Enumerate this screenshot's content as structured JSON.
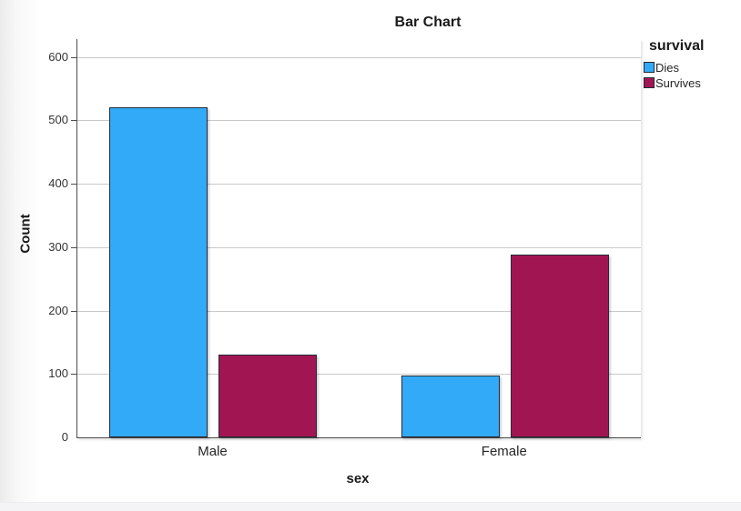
{
  "chart_data": {
    "type": "bar",
    "title": "Bar Chart",
    "xlabel": "sex",
    "ylabel": "Count",
    "categories": [
      "Male",
      "Female"
    ],
    "series": [
      {
        "name": "Dies",
        "color": "#33AAF8",
        "values": [
          520,
          97
        ]
      },
      {
        "name": "Survives",
        "color": "#A21553",
        "values": [
          130,
          288
        ]
      }
    ],
    "ylim": [
      0,
      628
    ],
    "yticks": [
      0,
      100,
      200,
      300,
      400,
      500,
      600
    ],
    "grid": "horizontal",
    "legend": {
      "title": "survival",
      "position": "top-right"
    },
    "colors": {
      "bar_border": "#262a35",
      "gridline": "#c9c9c9",
      "axis": "#4d4d4d",
      "text": "#262626"
    }
  }
}
